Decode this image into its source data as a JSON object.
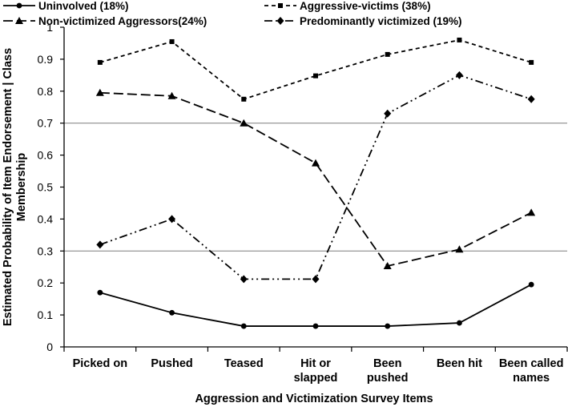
{
  "chart_data": {
    "type": "line",
    "xlabel": "Aggression and Victimization Survey Items",
    "ylabel_lines": [
      "Estimated Probability of Item Endorsement | Class",
      "Membership"
    ],
    "categories": [
      [
        "Picked on"
      ],
      [
        "Pushed"
      ],
      [
        "Teased"
      ],
      [
        "Hit or",
        "slapped"
      ],
      [
        "Been",
        "pushed"
      ],
      [
        "Been hit"
      ],
      [
        "Been called",
        "names"
      ]
    ],
    "ylim": [
      0,
      1
    ],
    "y_ticks": [
      "0",
      "0.1",
      "0.2",
      "0.3",
      "0.4",
      "0.5",
      "0.6",
      "0.7",
      "0.8",
      "0.9",
      "1"
    ],
    "reference_lines": [
      0.3,
      0.7
    ],
    "series": [
      {
        "name": "Uninvolved (18%)",
        "values": [
          0.17,
          0.107,
          0.065,
          0.065,
          0.065,
          0.075,
          0.195
        ],
        "dash": "solid",
        "marker": "circle",
        "color": "#000000"
      },
      {
        "name": "Aggressive-victims (38%)",
        "values": [
          0.89,
          0.955,
          0.775,
          0.848,
          0.915,
          0.96,
          0.89
        ],
        "dash": "short-dash",
        "marker": "square",
        "color": "#000000"
      },
      {
        "name": "Non-victimized Aggressors(24%)",
        "values": [
          0.795,
          0.785,
          0.7,
          0.575,
          0.253,
          0.305,
          0.42
        ],
        "dash": "long-dash",
        "marker": "triangle",
        "color": "#000000"
      },
      {
        "name": "Predominantly victimized (19%)",
        "values": [
          0.32,
          0.4,
          0.212,
          0.212,
          0.73,
          0.85,
          0.775
        ],
        "dash": "dash-dot-dot",
        "marker": "diamond",
        "color": "#000000"
      }
    ],
    "legend_position": "top",
    "grid": false
  }
}
